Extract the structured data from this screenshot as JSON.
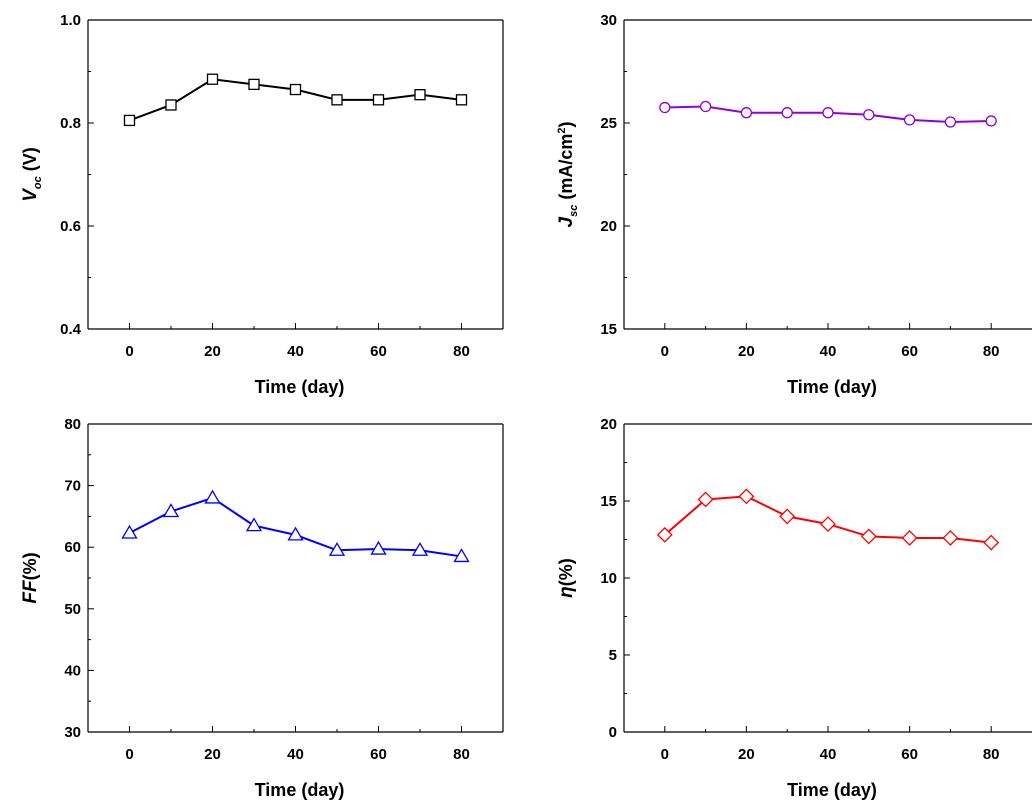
{
  "chart_data": [
    {
      "type": "line",
      "panel": "top-left",
      "xlabel": "Time (day)",
      "ylabel": {
        "symbol": "V",
        "sub": "oc",
        "rest": " (V)"
      },
      "xlim": [
        -10,
        90
      ],
      "ylim": [
        0.4,
        1.0
      ],
      "xticks": [
        "0",
        "20",
        "40",
        "60",
        "80"
      ],
      "yticks": [
        "0.4",
        "0.6",
        "0.8",
        "1.0"
      ],
      "x": [
        0,
        10,
        20,
        30,
        40,
        50,
        60,
        70,
        80
      ],
      "series": [
        {
          "marker": "square",
          "color": "#000000",
          "values": [
            0.805,
            0.835,
            0.885,
            0.875,
            0.865,
            0.845,
            0.845,
            0.855,
            0.845
          ]
        }
      ]
    },
    {
      "type": "line",
      "panel": "top-right",
      "xlabel": "Time (day)",
      "ylabel": {
        "symbol": "J",
        "sub": "sc",
        "rest": " (mA/cm",
        "sup": "2",
        "tail": ")"
      },
      "xlim": [
        -10,
        90
      ],
      "ylim": [
        15,
        30
      ],
      "xticks": [
        "0",
        "20",
        "40",
        "60",
        "80"
      ],
      "yticks": [
        "15",
        "20",
        "25",
        "30"
      ],
      "x": [
        0,
        10,
        20,
        30,
        40,
        50,
        60,
        70,
        80
      ],
      "series": [
        {
          "marker": "circle",
          "color": "#9400d3",
          "values": [
            25.75,
            25.8,
            25.5,
            25.5,
            25.5,
            25.4,
            25.15,
            25.05,
            25.1
          ]
        }
      ]
    },
    {
      "type": "line",
      "panel": "bottom-left",
      "xlabel": "Time (day)",
      "ylabel": {
        "symbol": "FF",
        "rest": "(%)"
      },
      "xlim": [
        -10,
        90
      ],
      "ylim": [
        30,
        80
      ],
      "xticks": [
        "0",
        "20",
        "40",
        "60",
        "80"
      ],
      "yticks": [
        "30",
        "40",
        "50",
        "60",
        "70",
        "80"
      ],
      "x": [
        0,
        10,
        20,
        30,
        40,
        50,
        60,
        70,
        80
      ],
      "series": [
        {
          "marker": "triangle",
          "color": "#0000ff",
          "values": [
            62.3,
            65.8,
            68.0,
            63.5,
            62.0,
            59.5,
            59.7,
            59.5,
            58.5
          ]
        }
      ]
    },
    {
      "type": "line",
      "panel": "bottom-right",
      "xlabel": "Time (day)",
      "ylabel": {
        "symbol": "η",
        "rest": "(%)"
      },
      "xlim": [
        -10,
        90
      ],
      "ylim": [
        0,
        20
      ],
      "xticks": [
        "0",
        "20",
        "40",
        "60",
        "80"
      ],
      "yticks": [
        "0",
        "5",
        "10",
        "15",
        "20"
      ],
      "x": [
        0,
        10,
        20,
        30,
        40,
        50,
        60,
        70,
        80
      ],
      "series": [
        {
          "marker": "diamond",
          "color": "#ff0000",
          "values": [
            12.8,
            15.1,
            15.3,
            14.0,
            13.5,
            12.7,
            12.6,
            12.6,
            12.3
          ]
        }
      ]
    }
  ]
}
